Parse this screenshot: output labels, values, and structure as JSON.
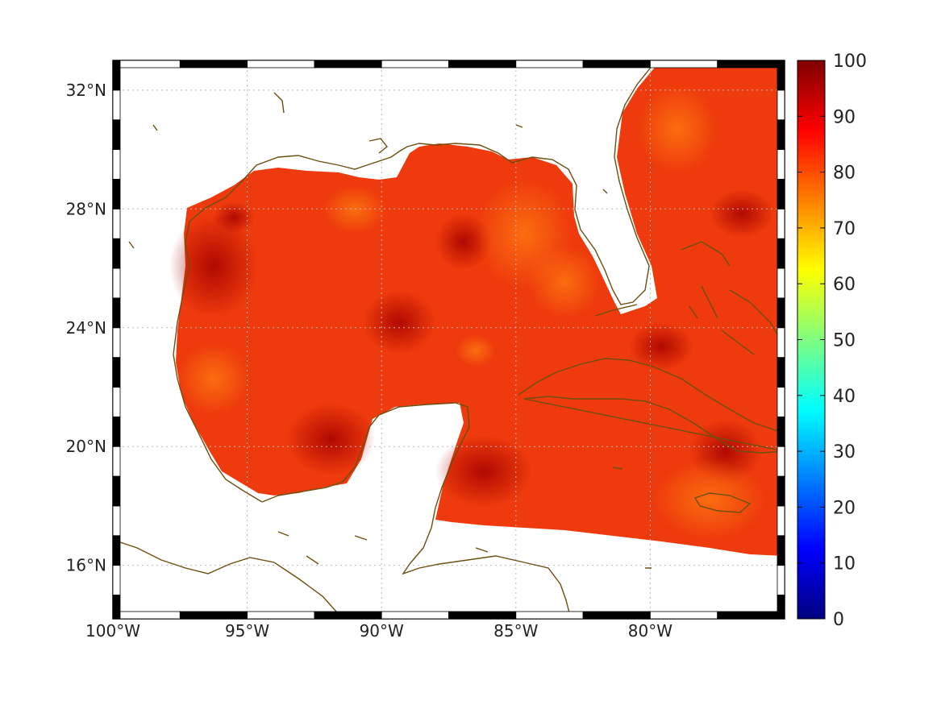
{
  "map": {
    "projection": "equirectangular",
    "lon_range": [
      -100,
      -75
    ],
    "lat_range": [
      14.2,
      33
    ],
    "lon_ticks": [
      {
        "value": -100,
        "label": "100°W"
      },
      {
        "value": -95,
        "label": "95°W"
      },
      {
        "value": -90,
        "label": "90°W"
      },
      {
        "value": -85,
        "label": "85°W"
      },
      {
        "value": -80,
        "label": "80°W"
      }
    ],
    "lat_ticks": [
      {
        "value": 32,
        "label": "32°N"
      },
      {
        "value": 28,
        "label": "28°N"
      },
      {
        "value": 24,
        "label": "24°N"
      },
      {
        "value": 20,
        "label": "20°N"
      },
      {
        "value": 16,
        "label": "16°N"
      }
    ],
    "grid": true,
    "coastline_color": "#6b4f10",
    "colormap": "jet",
    "field_typical_range": [
      78,
      98
    ]
  },
  "colorbar": {
    "min": 0,
    "max": 100,
    "ticks": [
      {
        "value": 100,
        "label": "100"
      },
      {
        "value": 90,
        "label": "90"
      },
      {
        "value": 80,
        "label": "80"
      },
      {
        "value": 70,
        "label": "70"
      },
      {
        "value": 60,
        "label": "60"
      },
      {
        "value": 50,
        "label": "50"
      },
      {
        "value": 40,
        "label": "40"
      },
      {
        "value": 30,
        "label": "30"
      },
      {
        "value": 20,
        "label": "20"
      },
      {
        "value": 10,
        "label": "10"
      },
      {
        "value": 0,
        "label": "0"
      }
    ],
    "stops": [
      "#00007f",
      "#0000ff",
      "#007fff",
      "#00ffff",
      "#7fff7f",
      "#ffff00",
      "#ff7f00",
      "#ff0000",
      "#7f0000"
    ]
  }
}
